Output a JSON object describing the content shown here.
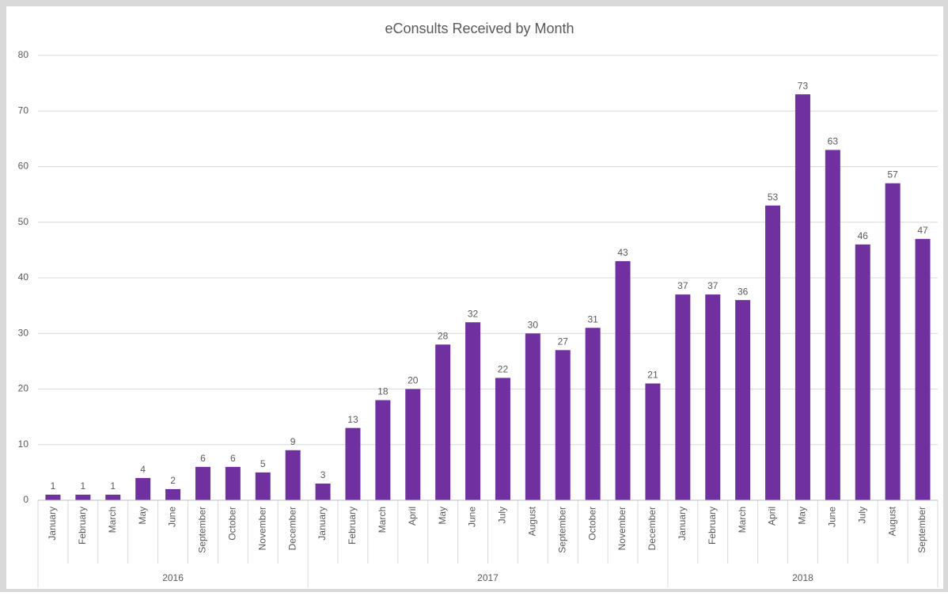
{
  "chart_data": {
    "type": "bar",
    "title": "eConsults Received by Month",
    "color": "#7030a0",
    "ylim": [
      0,
      80
    ],
    "yticks": [
      0,
      10,
      20,
      30,
      40,
      50,
      60,
      70,
      80
    ],
    "grid": true,
    "groups": [
      {
        "label": "2016",
        "categories": [
          "January",
          "February",
          "March",
          "May",
          "June",
          "September",
          "October",
          "November",
          "December"
        ],
        "values": [
          1,
          1,
          1,
          4,
          2,
          6,
          6,
          5,
          9
        ]
      },
      {
        "label": "2017",
        "categories": [
          "January",
          "February",
          "March",
          "April",
          "May",
          "June",
          "July",
          "August",
          "September",
          "October",
          "November",
          "December"
        ],
        "values": [
          3,
          13,
          18,
          20,
          28,
          32,
          22,
          30,
          27,
          31,
          43,
          21
        ]
      },
      {
        "label": "2018",
        "categories": [
          "January",
          "February",
          "March",
          "April",
          "May",
          "June",
          "July",
          "August",
          "September"
        ],
        "values": [
          37,
          37,
          36,
          53,
          73,
          63,
          46,
          57,
          47
        ]
      }
    ]
  }
}
